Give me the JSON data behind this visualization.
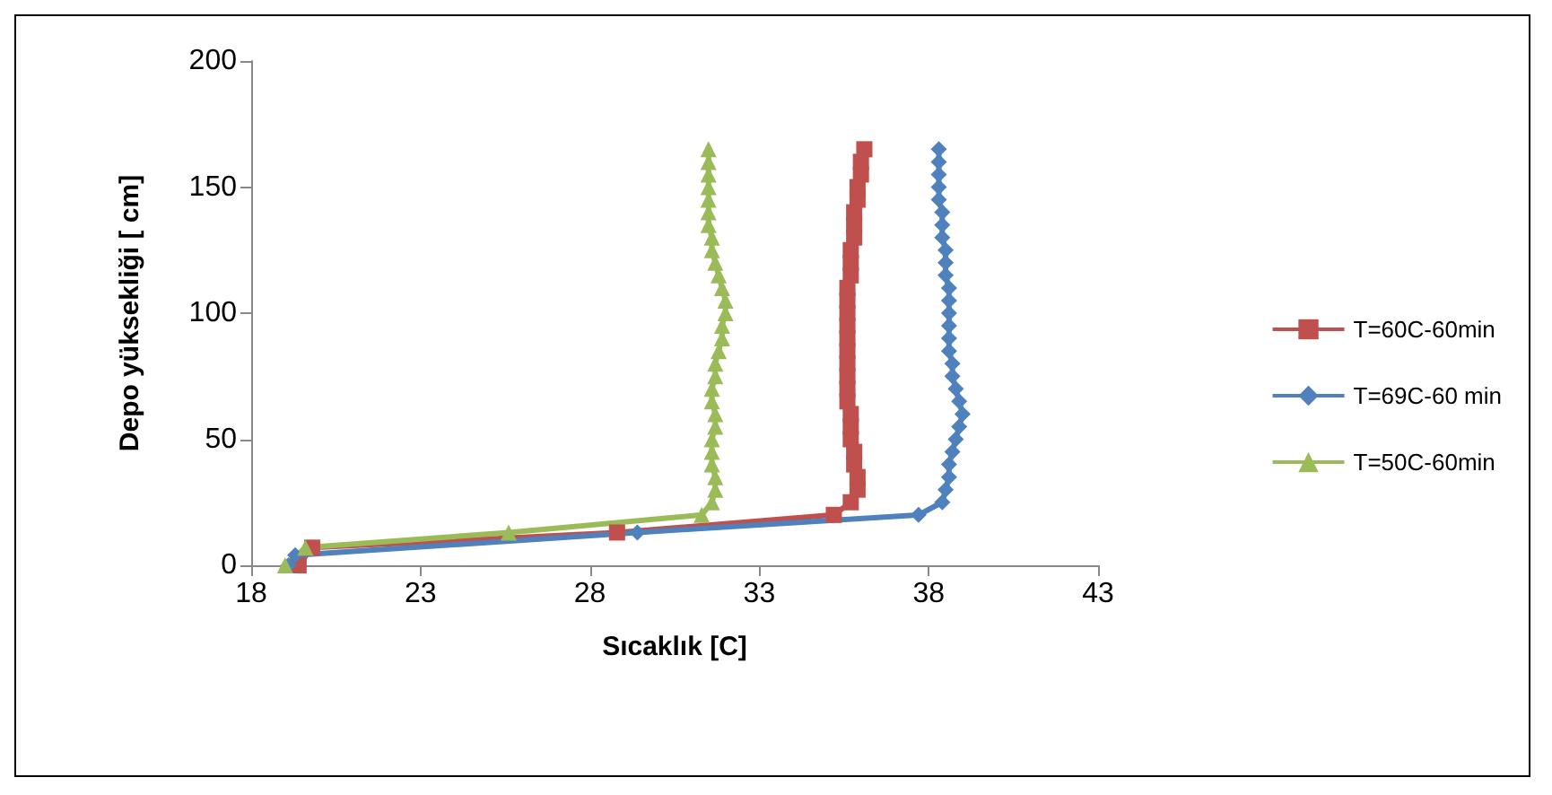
{
  "chart_data": {
    "type": "line",
    "xlabel": "Sıcaklık [C]",
    "ylabel": "Depo yüksekliği [ cm]",
    "xlim": [
      18,
      43
    ],
    "xticks": [
      18,
      23,
      28,
      33,
      38,
      43
    ],
    "ylim": [
      0,
      200
    ],
    "yticks": [
      0,
      50,
      100,
      150,
      200
    ],
    "grid": false,
    "legend": "right",
    "series": [
      {
        "name": "T=60C-60min",
        "color": "#c0504d",
        "marker": "square",
        "x": [
          19.4,
          19.8,
          28.8,
          35.2,
          35.7,
          35.9,
          35.9,
          35.8,
          35.8,
          35.7,
          35.7,
          35.7,
          35.6,
          35.6,
          35.6,
          35.6,
          35.6,
          35.6,
          35.6,
          35.6,
          35.6,
          35.6,
          35.7,
          35.7,
          35.7,
          35.8,
          35.8,
          35.8,
          35.9,
          35.9,
          36,
          36,
          36.1
        ],
        "values": [
          0,
          7,
          13,
          20,
          25,
          30,
          35,
          40,
          45,
          50,
          55,
          60,
          65,
          70,
          75,
          80,
          85,
          90,
          95,
          100,
          105,
          110,
          115,
          120,
          125,
          130,
          135,
          140,
          145,
          150,
          155,
          160,
          165
        ]
      },
      {
        "name": "T=69C-60 min",
        "color": "#4f81bd",
        "marker": "diamond",
        "x": [
          19.1,
          19.3,
          29.4,
          37.7,
          38.4,
          38.5,
          38.6,
          38.6,
          38.7,
          38.8,
          38.9,
          39,
          38.9,
          38.8,
          38.7,
          38.7,
          38.6,
          38.6,
          38.6,
          38.6,
          38.6,
          38.6,
          38.5,
          38.5,
          38.5,
          38.4,
          38.4,
          38.4,
          38.3,
          38.3,
          38.3,
          38.3,
          38.3
        ],
        "values": [
          0,
          4,
          13,
          20,
          25,
          30,
          35,
          40,
          45,
          50,
          55,
          60,
          65,
          70,
          75,
          80,
          85,
          90,
          95,
          100,
          105,
          110,
          115,
          120,
          125,
          130,
          135,
          140,
          145,
          150,
          155,
          160,
          165
        ]
      },
      {
        "name": "T=50C-60min",
        "color": "#9bbb59",
        "marker": "triangle",
        "x": [
          19,
          19.6,
          25.6,
          31.3,
          31.6,
          31.7,
          31.7,
          31.6,
          31.6,
          31.6,
          31.7,
          31.7,
          31.6,
          31.6,
          31.7,
          31.7,
          31.8,
          31.9,
          31.9,
          32,
          32,
          31.9,
          31.8,
          31.7,
          31.6,
          31.6,
          31.5,
          31.5,
          31.5,
          31.5,
          31.5,
          31.5,
          31.5
        ],
        "values": [
          0,
          7,
          13,
          20,
          25,
          30,
          35,
          40,
          45,
          50,
          55,
          60,
          65,
          70,
          75,
          80,
          85,
          90,
          95,
          100,
          105,
          110,
          115,
          120,
          125,
          130,
          135,
          140,
          145,
          150,
          155,
          160,
          165
        ]
      }
    ]
  }
}
